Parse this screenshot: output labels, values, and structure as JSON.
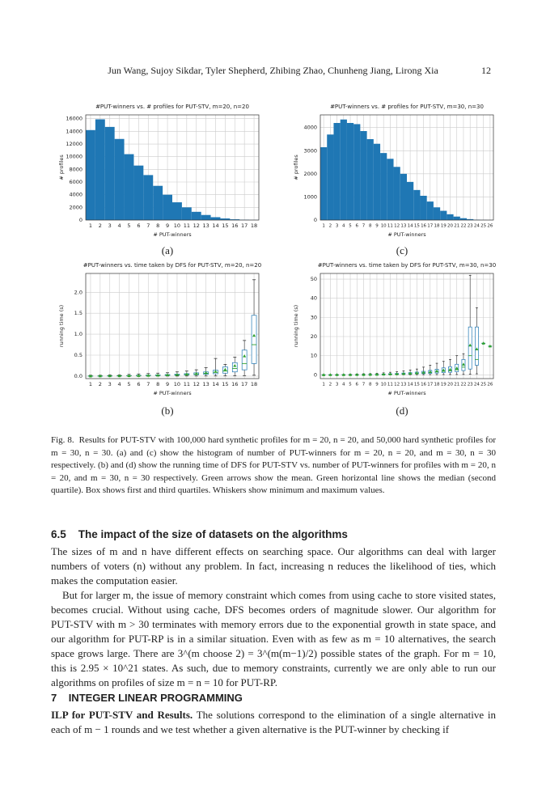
{
  "header": {
    "authors": "Jun Wang, Sujoy Sikdar, Tyler Shepherd, Zhibing Zhao, Chunheng Jiang, Lirong Xia",
    "page": "12"
  },
  "chart_data": [
    {
      "type": "bar",
      "panel_label": "(a)",
      "title": "#PUT-winners vs. # profiles for PUT-STV, m=20, n=20",
      "xlabel": "# PUT-winners",
      "ylabel": "# profiles",
      "color": "#1f77b4",
      "grid": true,
      "categories": [
        1,
        2,
        3,
        4,
        5,
        6,
        7,
        8,
        9,
        10,
        11,
        12,
        13,
        14,
        15,
        16,
        17,
        18
      ],
      "values": [
        14200,
        15900,
        14700,
        12800,
        10400,
        8600,
        7100,
        5400,
        4000,
        2800,
        2000,
        1300,
        800,
        450,
        250,
        120,
        50,
        20
      ],
      "ylim": [
        0,
        16600
      ],
      "yticks": [
        0,
        2000,
        4000,
        6000,
        8000,
        10000,
        12000,
        14000,
        16000
      ]
    },
    {
      "type": "bar",
      "panel_label": "(c)",
      "title": "#PUT-winners vs. # profiles for PUT-STV, m=30, n=30",
      "xlabel": "# PUT-winners",
      "ylabel": "# profiles",
      "color": "#1f77b4",
      "grid": true,
      "categories": [
        1,
        2,
        3,
        4,
        5,
        6,
        7,
        8,
        9,
        10,
        11,
        12,
        13,
        14,
        15,
        16,
        17,
        18,
        19,
        20,
        21,
        22,
        23,
        24,
        25,
        26
      ],
      "values": [
        3150,
        3700,
        4200,
        4350,
        4200,
        4150,
        3850,
        3500,
        3300,
        2900,
        2650,
        2300,
        2000,
        1650,
        1300,
        1050,
        800,
        550,
        400,
        250,
        150,
        80,
        40,
        15,
        5,
        2
      ],
      "ylim": [
        0,
        4550
      ],
      "yticks": [
        0,
        1000,
        2000,
        3000,
        4000
      ]
    },
    {
      "type": "box",
      "panel_label": "(b)",
      "title": "#PUT-winners vs. time taken by DFS for PUT-STV, m=20, n=20",
      "xlabel": "# PUT-winners",
      "ylabel": "running time (s)",
      "color": "#1f77b4",
      "mean_color": "#2ca02c",
      "grid": true,
      "categories": [
        1,
        2,
        3,
        4,
        5,
        6,
        7,
        8,
        9,
        10,
        11,
        12,
        13,
        14,
        15,
        16,
        17,
        18
      ],
      "min": [
        0,
        0,
        0,
        0,
        0,
        0,
        0,
        0.001,
        0.001,
        0.001,
        0.002,
        0.002,
        0.003,
        0.004,
        0.005,
        0.006,
        0.01,
        0.02
      ],
      "q1": [
        0.001,
        0.002,
        0.003,
        0.004,
        0.006,
        0.008,
        0.01,
        0.013,
        0.016,
        0.02,
        0.025,
        0.032,
        0.042,
        0.055,
        0.07,
        0.1,
        0.15,
        0.3
      ],
      "median": [
        0.002,
        0.003,
        0.005,
        0.007,
        0.009,
        0.011,
        0.015,
        0.019,
        0.024,
        0.03,
        0.038,
        0.05,
        0.065,
        0.09,
        0.12,
        0.18,
        0.3,
        0.75
      ],
      "q3": [
        0.004,
        0.005,
        0.008,
        0.01,
        0.013,
        0.017,
        0.022,
        0.028,
        0.036,
        0.045,
        0.058,
        0.078,
        0.1,
        0.14,
        0.22,
        0.32,
        0.62,
        1.45
      ],
      "max": [
        0.02,
        0.02,
        0.03,
        0.03,
        0.04,
        0.05,
        0.06,
        0.07,
        0.08,
        0.1,
        0.12,
        0.15,
        0.2,
        0.42,
        0.28,
        0.45,
        0.85,
        2.3
      ],
      "mean": [
        0.003,
        0.004,
        0.006,
        0.008,
        0.01,
        0.013,
        0.017,
        0.022,
        0.028,
        0.035,
        0.045,
        0.06,
        0.08,
        0.11,
        0.16,
        0.25,
        0.48,
        0.97
      ],
      "ylim": [
        -0.06,
        2.45
      ],
      "yticks": [
        {
          "value": 0,
          "label": "0.0"
        },
        {
          "value": 0.5,
          "label": "0.5"
        },
        {
          "value": 1,
          "label": "1.0"
        },
        {
          "value": 1.5,
          "label": "1.5"
        },
        {
          "value": 2,
          "label": "2.0"
        }
      ]
    },
    {
      "type": "box",
      "panel_label": "(d)",
      "title": "#PUT-winners vs. time taken by DFS for PUT-STV, m=30, n=30",
      "xlabel": "# PUT-winners",
      "ylabel": "running time (s)",
      "color": "#1f77b4",
      "mean_color": "#2ca02c",
      "grid": true,
      "categories": [
        1,
        2,
        3,
        4,
        5,
        6,
        7,
        8,
        9,
        10,
        11,
        12,
        13,
        14,
        15,
        16,
        17,
        18,
        19,
        20,
        21,
        22,
        23,
        24,
        25,
        26
      ],
      "min": [
        0,
        0,
        0,
        0,
        0,
        0,
        0,
        0,
        0.01,
        0.01,
        0.01,
        0.02,
        0.02,
        0.03,
        0.04,
        0.05,
        0.06,
        0.08,
        0.1,
        0.12,
        0.15,
        0.2,
        0.3,
        0.5,
        16.5,
        15
      ],
      "q1": [
        0.01,
        0.01,
        0.02,
        0.03,
        0.04,
        0.05,
        0.07,
        0.09,
        0.12,
        0.16,
        0.2,
        0.26,
        0.33,
        0.4,
        0.5,
        0.6,
        0.7,
        0.9,
        1.1,
        1.3,
        1.6,
        2.2,
        3,
        5,
        16.5,
        15
      ],
      "median": [
        0.02,
        0.02,
        0.03,
        0.04,
        0.05,
        0.08,
        0.1,
        0.13,
        0.18,
        0.24,
        0.32,
        0.4,
        0.5,
        0.6,
        0.8,
        1,
        1.2,
        1.5,
        1.8,
        2.1,
        2.6,
        4,
        10,
        8,
        16.5,
        15
      ],
      "q3": [
        0.03,
        0.04,
        0.05,
        0.07,
        0.1,
        0.13,
        0.18,
        0.24,
        0.3,
        0.4,
        0.55,
        0.7,
        0.9,
        1.1,
        1.4,
        1.8,
        2.3,
        2.9,
        3.6,
        4.2,
        5.5,
        8,
        25,
        25,
        16.5,
        15
      ],
      "max": [
        0.1,
        0.1,
        0.2,
        0.2,
        0.3,
        0.4,
        0.5,
        0.6,
        0.8,
        1,
        1.3,
        1.6,
        2,
        2.5,
        3,
        4,
        5,
        6,
        7,
        8,
        10,
        11,
        52,
        35,
        16.5,
        15
      ],
      "mean": [
        0.02,
        0.03,
        0.04,
        0.05,
        0.07,
        0.1,
        0.13,
        0.17,
        0.22,
        0.3,
        0.4,
        0.5,
        0.65,
        0.8,
        1,
        1.3,
        1.6,
        2,
        2.5,
        2.8,
        3.5,
        5.5,
        15.5,
        13.5,
        16.5,
        15
      ],
      "ylim": [
        -2,
        53
      ],
      "yticks": [
        0,
        10,
        20,
        30,
        40,
        50
      ]
    }
  ],
  "caption": {
    "label": "Fig. 8.",
    "text": "Results for PUT-STV with 100,000 hard synthetic profiles for m = 20, n = 20, and 50,000 hard synthetic profiles for m = 30, n = 30. (a) and (c) show the histogram of number of PUT-winners for m = 20, n = 20, and m = 30, n = 30 respectively. (b) and (d) show the running time of DFS for PUT-STV vs. number of PUT-winners for profiles with m = 20, n = 20, and m = 30, n = 30 respectively. Green arrows show the mean. Green horizontal line shows the median (second quartile). Box shows first and third quartiles. Whiskers show minimum and maximum values."
  },
  "section_65": {
    "number": "6.5",
    "title": "The impact of the size of datasets on the algorithms",
    "paragraphs": [
      "The sizes of m and n have different effects on searching space. Our algorithms can deal with larger numbers of voters (n) without any problem. In fact, increasing n reduces the likelihood of ties, which makes the computation easier.",
      "But for larger m, the issue of memory constraint which comes from using cache to store visited states, becomes crucial. Without using cache, DFS becomes orders of magnitude slower. Our algorithm for PUT-STV with m > 30 terminates with memory errors due to the exponential growth in state space, and our algorithm for PUT-RP is in a similar situation. Even with as few as m = 10 alternatives, the search space grows large. There are 3^(m choose 2) = 3^(m(m−1)/2) possible states of the graph. For m = 10, this is 2.95 × 10^21 states. As such, due to memory constraints, currently we are only able to run our algorithms on profiles of size m = n = 10 for PUT-RP."
    ]
  },
  "section_7": {
    "number": "7",
    "title": "INTEGER LINEAR PROGRAMMING",
    "run_in": "ILP for PUT-STV and Results.",
    "text": "The solutions correspond to the elimination of a single alternative in each of m − 1 rounds and we test whether a given alternative is the PUT-winner by checking if"
  }
}
